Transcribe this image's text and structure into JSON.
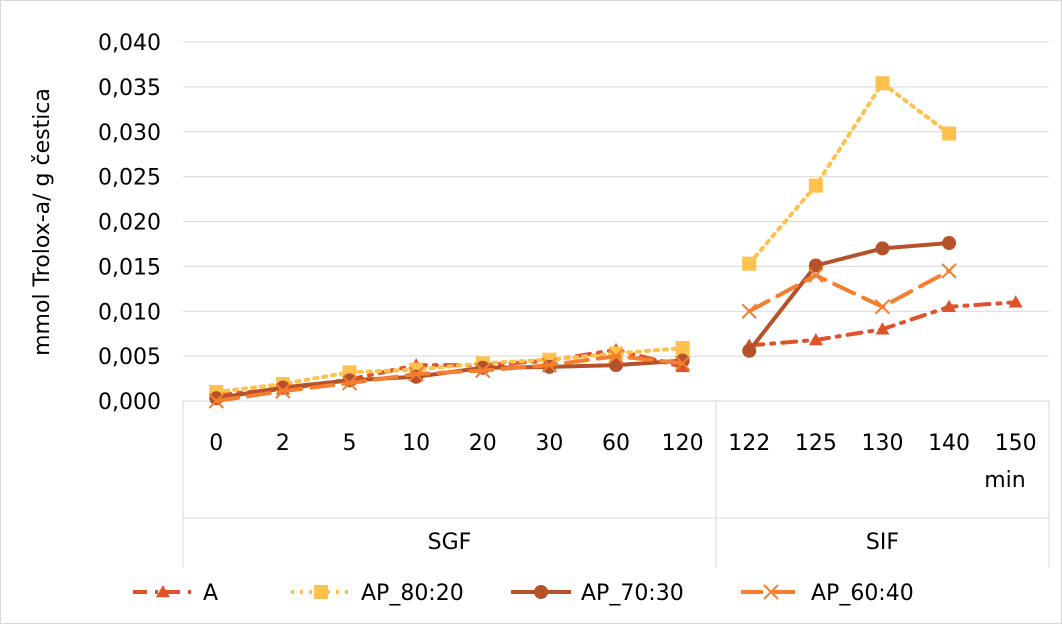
{
  "chart_data": {
    "type": "line",
    "title": "",
    "ylabel": "mmol Trolox-a/ g čestica",
    "xlabel": "",
    "x_unit_label": "min",
    "ylim": [
      0,
      0.04
    ],
    "ytick_step": 0.005,
    "ytick_labels": [
      "0,000",
      "0,005",
      "0,010",
      "0,015",
      "0,020",
      "0,025",
      "0,030",
      "0,035",
      "0,040"
    ],
    "grid": "horizontal",
    "legend_position": "bottom",
    "categories": [
      "0",
      "2",
      "5",
      "10",
      "20",
      "30",
      "60",
      "120",
      "122",
      "125",
      "130",
      "140",
      "150"
    ],
    "groups": [
      {
        "label": "SGF",
        "count": 8
      },
      {
        "label": "SIF",
        "count": 5
      }
    ],
    "series": [
      {
        "name": "A",
        "color": "#e0522a",
        "line": "dash-dot",
        "marker": "triangle",
        "values": [
          0.0007,
          0.0013,
          0.0024,
          0.004,
          0.004,
          0.0045,
          0.0057,
          0.0038,
          0.0062,
          0.0068,
          0.008,
          0.0105,
          0.011
        ]
      },
      {
        "name": "AP_80:20",
        "color": "#ffc04d",
        "line": "dotted",
        "marker": "square",
        "values": [
          0.001,
          0.0019,
          0.0032,
          0.0035,
          0.0042,
          0.0046,
          0.0053,
          0.0059,
          0.0153,
          0.024,
          0.0354,
          0.0298,
          null
        ]
      },
      {
        "name": "AP_70:30",
        "color": "#b5522a",
        "line": "solid",
        "marker": "circle",
        "values": [
          0.0003,
          0.0015,
          0.0023,
          0.0027,
          0.0037,
          0.0038,
          0.004,
          0.0045,
          0.0056,
          0.0151,
          0.017,
          0.0176,
          null
        ]
      },
      {
        "name": "AP_60:40",
        "color": "#f57f2e",
        "line": "long-dash",
        "marker": "x",
        "values": [
          0.0,
          0.0011,
          0.002,
          0.003,
          0.0034,
          0.004,
          0.005,
          0.0042,
          0.01,
          0.014,
          0.0105,
          0.0145,
          null
        ]
      }
    ]
  }
}
